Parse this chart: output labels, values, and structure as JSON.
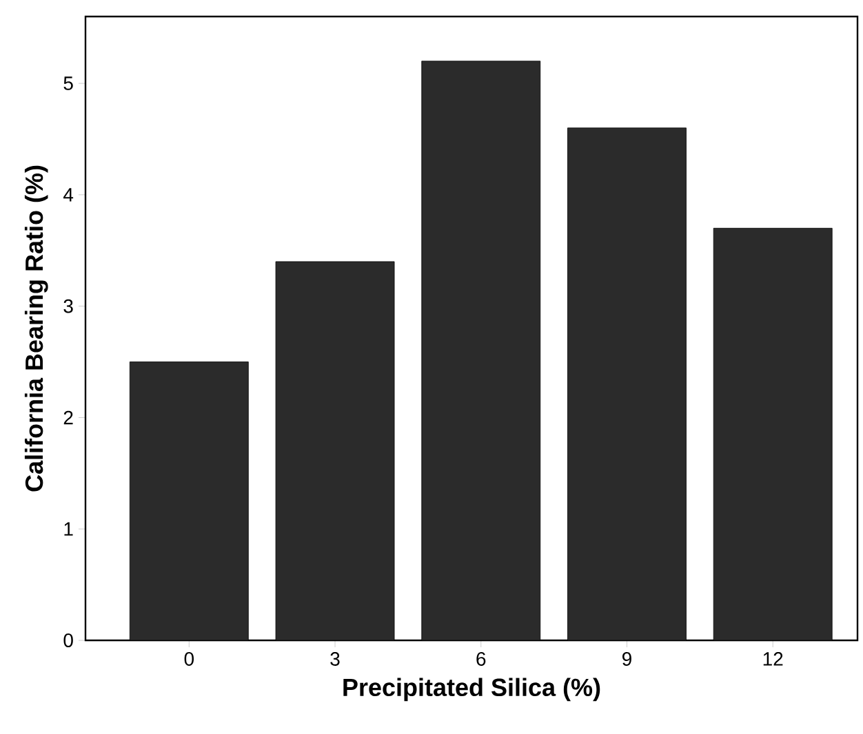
{
  "chart_data": {
    "type": "bar",
    "xlabel": "Precipitated Silica (%)",
    "ylabel": "California Bearing Ratio (%)",
    "categories": [
      "0",
      "3",
      "6",
      "9",
      "12"
    ],
    "values": [
      2.5,
      3.4,
      5.2,
      4.6,
      3.7
    ],
    "color": "#2b2b2b",
    "ylim": [
      0,
      5.6
    ],
    "yticks": [
      0,
      1,
      2,
      3,
      4,
      5
    ]
  }
}
